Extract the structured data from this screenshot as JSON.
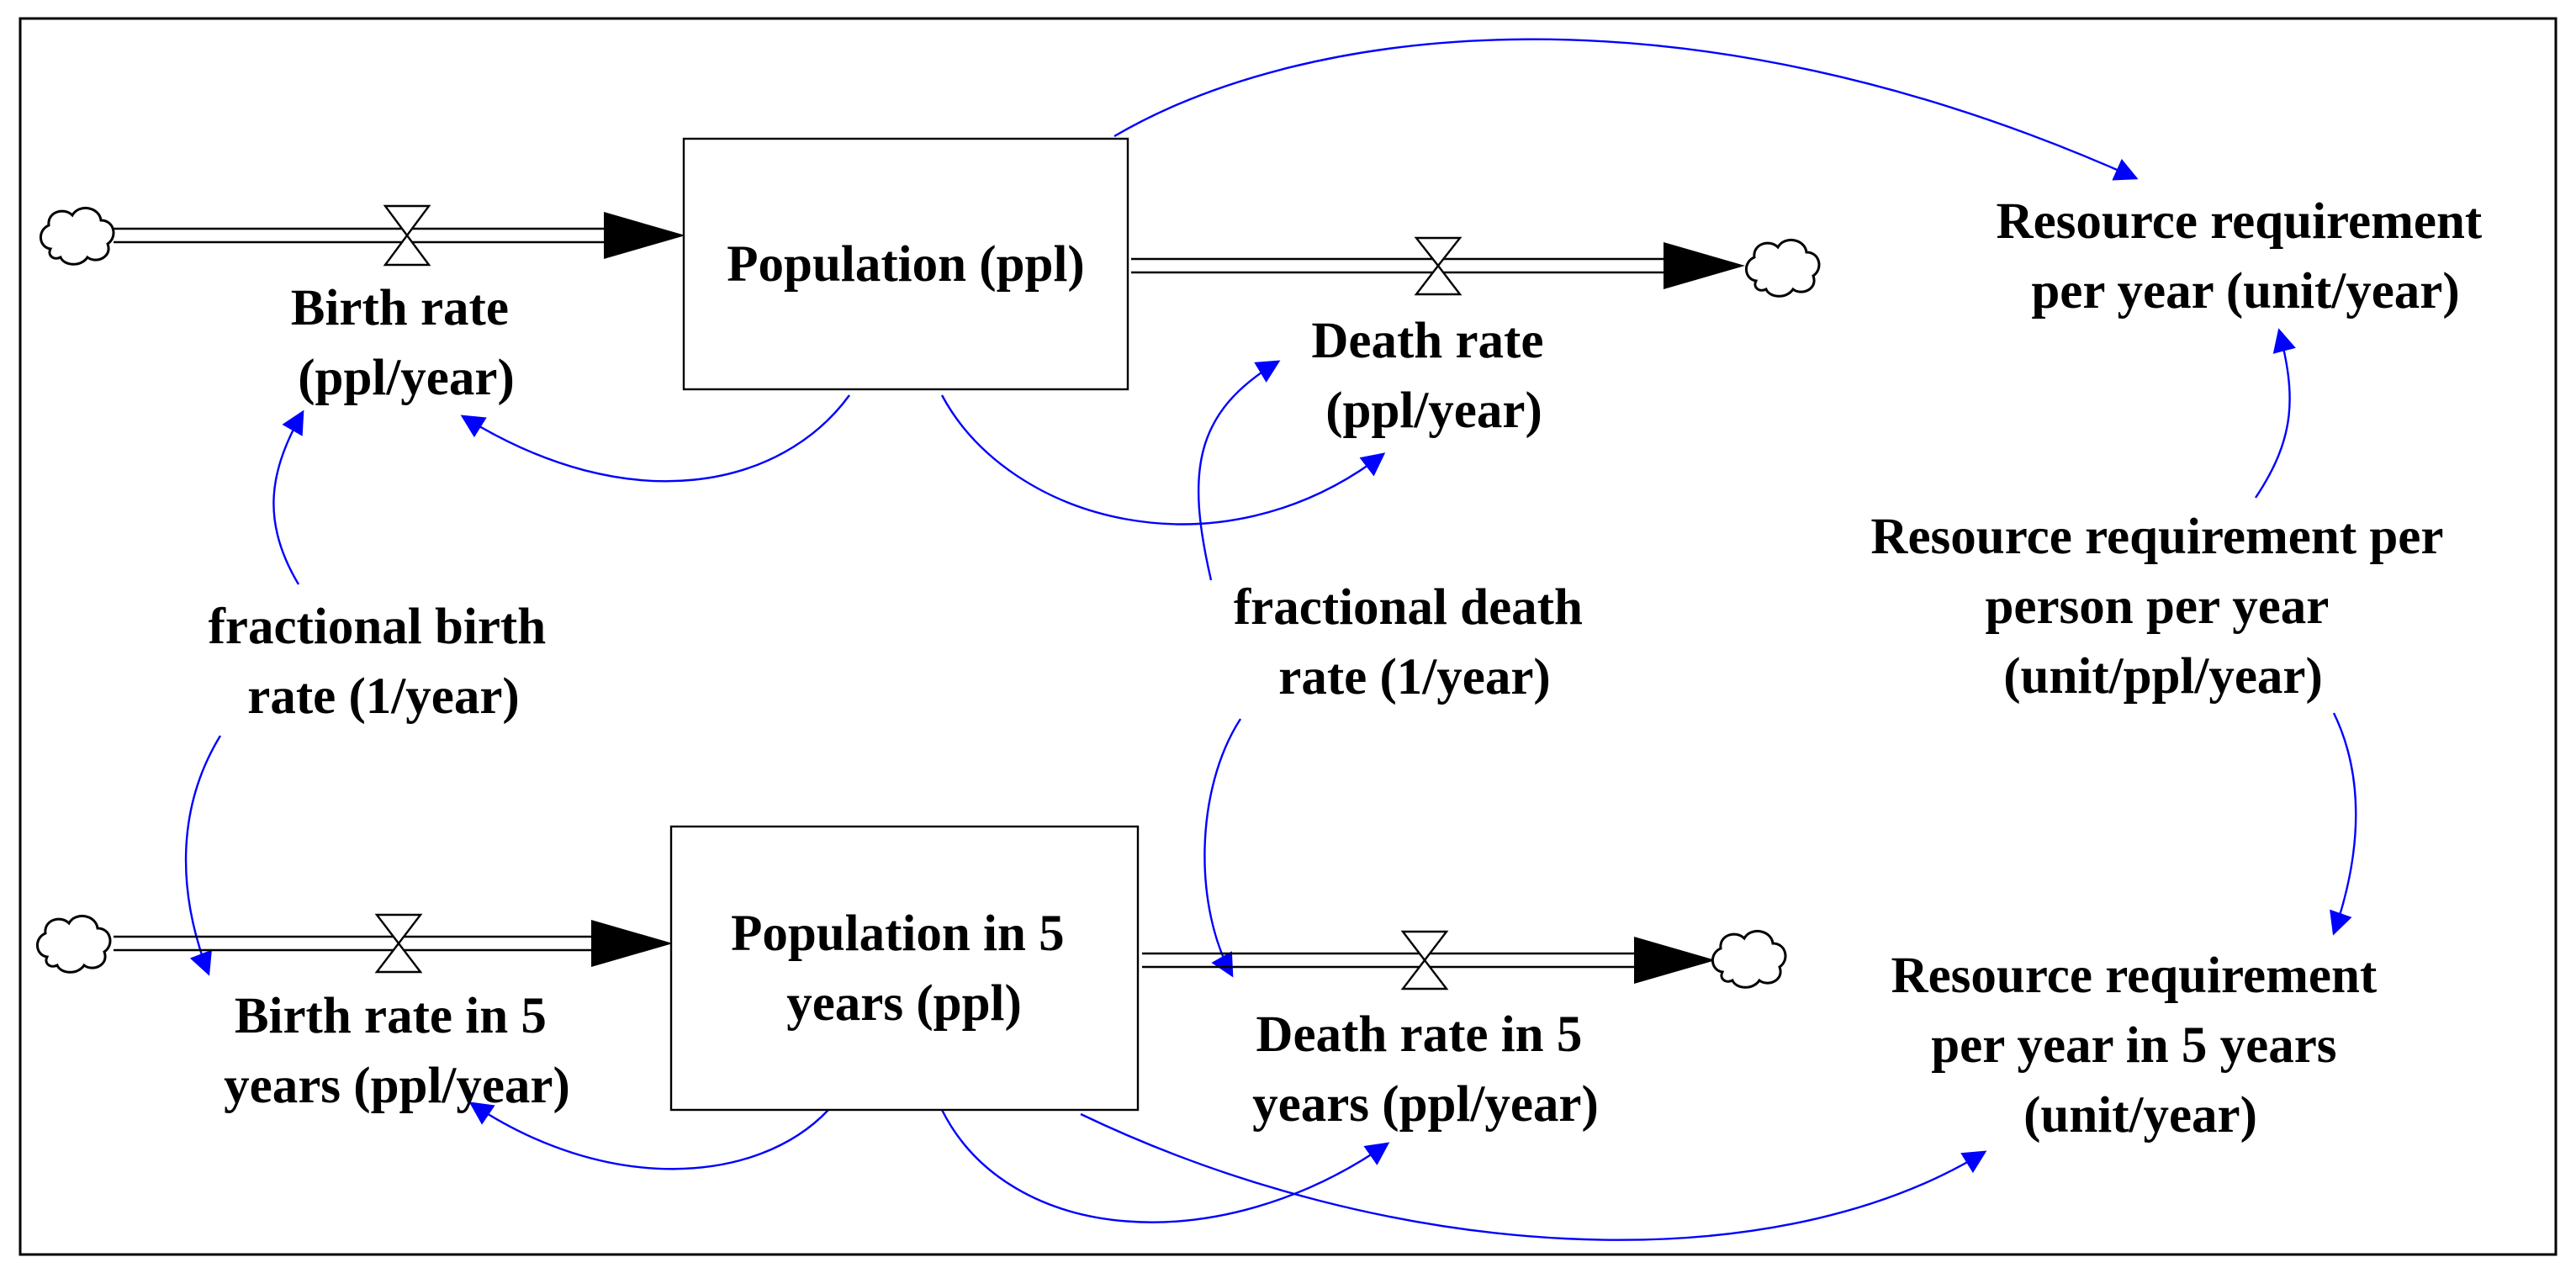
{
  "stocks": {
    "population": [
      "Population (ppl)"
    ],
    "population_5y": [
      "Population in 5",
      "years (ppl)"
    ]
  },
  "flows": {
    "birth_rate": [
      "Birth rate",
      "(ppl/year)"
    ],
    "death_rate": [
      "Death rate",
      "(ppl/year)"
    ],
    "birth_rate_5y": [
      "Birth rate in 5",
      "years (ppl/year)"
    ],
    "death_rate_5y": [
      "Death rate in 5",
      "years (ppl/year)"
    ]
  },
  "variables": {
    "fractional_birth_rate": [
      "fractional birth",
      "rate (1/year)"
    ],
    "fractional_death_rate": [
      "fractional death",
      "rate (1/year)"
    ],
    "resource_requirement": [
      "Resource requirement",
      "per year (unit/year)"
    ],
    "resource_per_person": [
      "Resource requirement per",
      "person per year",
      "(unit/ppl/year)"
    ],
    "resource_requirement_5y": [
      "Resource requirement",
      "per year in 5 years",
      "(unit/year)"
    ]
  },
  "colors": {
    "link": "#0000ff",
    "stroke": "#000000",
    "background": "#ffffff"
  },
  "icons": {
    "source_sink": "cloud-icon",
    "flow_regulator": "valve-icon"
  }
}
